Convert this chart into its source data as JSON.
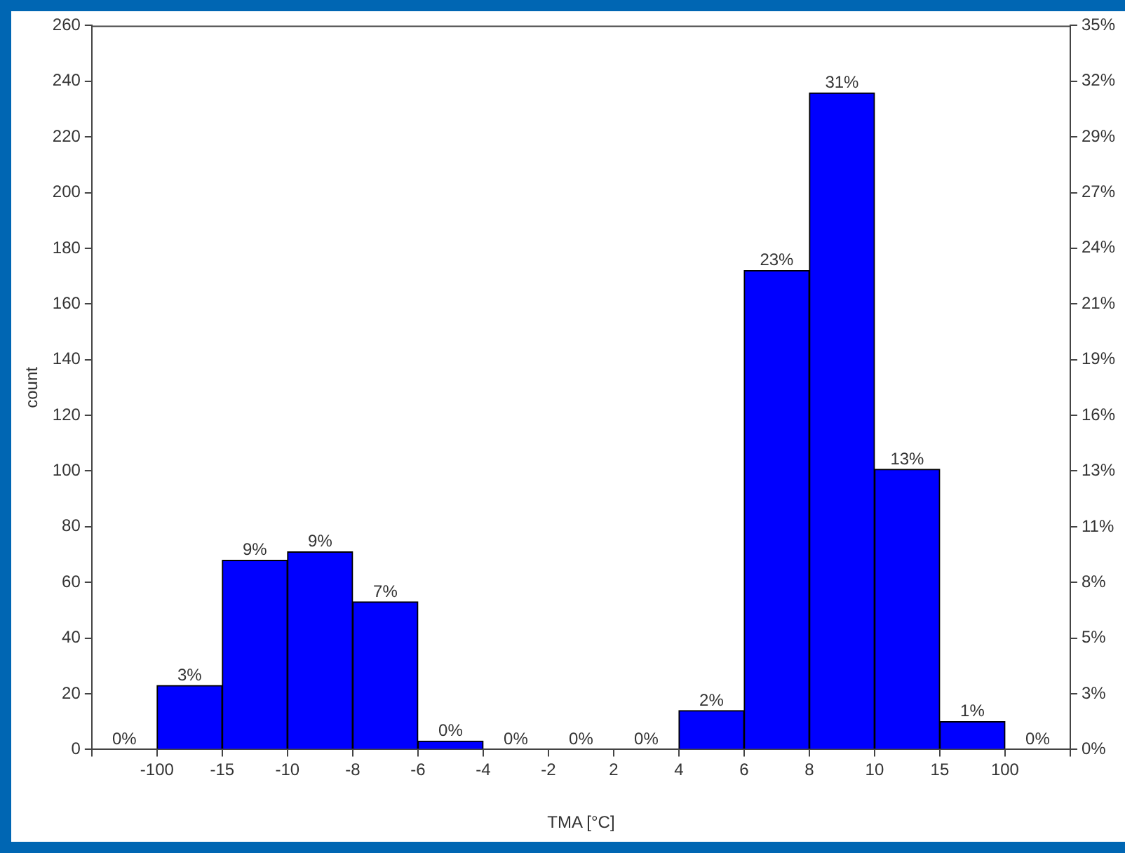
{
  "chart_data": {
    "type": "bar",
    "xlabel": "TMA [°C]",
    "ylabel": "count",
    "categories": [
      null,
      null,
      null,
      null,
      null,
      null,
      null,
      null,
      null,
      null,
      null,
      null,
      null,
      null,
      null
    ],
    "series": [
      {
        "axis": "y2",
        "color": "#0000ff",
        "values": [
          0,
          3.06,
          9.05,
          9.45,
          7.06,
          0.4,
          0,
          0,
          0,
          1.86,
          22.9,
          31.4,
          13.4,
          1.33,
          0
        ],
        "value_labels": [
          "0%",
          "3%",
          "9%",
          "9%",
          "7%",
          "0%",
          "0%",
          "0%",
          "0%",
          "2%",
          "23%",
          "31%",
          "13%",
          "1%",
          "0%"
        ]
      }
    ],
    "annotations": [
      "-100",
      "-15",
      "-10",
      "-8",
      "-6",
      "-4",
      "-2",
      "2",
      "4",
      "6",
      "8",
      "10",
      "15",
      "100"
    ],
    "ylim": [
      0,
      260
    ],
    "yticks": [
      0,
      20,
      40,
      60,
      80,
      100,
      120,
      140,
      160,
      180,
      200,
      220,
      240,
      260
    ],
    "y2lim": [
      0,
      34.62
    ],
    "y2ticks": [
      {
        "value": 0,
        "label": "0%"
      },
      {
        "value": 2.66,
        "label": "3%"
      },
      {
        "value": 5.33,
        "label": "5%"
      },
      {
        "value": 7.99,
        "label": "8%"
      },
      {
        "value": 10.65,
        "label": "11%"
      },
      {
        "value": 13.32,
        "label": "13%"
      },
      {
        "value": 15.98,
        "label": "16%"
      },
      {
        "value": 18.64,
        "label": "19%"
      },
      {
        "value": 21.3,
        "label": "21%"
      },
      {
        "value": 23.97,
        "label": "24%"
      },
      {
        "value": 26.63,
        "label": "27%"
      },
      {
        "value": 29.29,
        "label": "29%"
      },
      {
        "value": 31.96,
        "label": "32%"
      },
      {
        "value": 34.62,
        "label": "35%"
      }
    ],
    "grid": false,
    "legend": false
  }
}
